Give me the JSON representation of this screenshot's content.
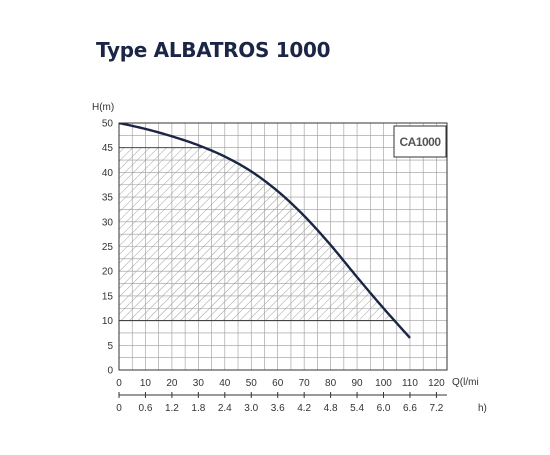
{
  "title": "Type ALBATROS 1000",
  "chart_data": {
    "type": "line",
    "title": "Type ALBATROS 1000",
    "ylabel": "H(m)",
    "xlabel": "Q(l/mi",
    "x2label": "h)",
    "xlim": [
      0,
      124
    ],
    "ylim": [
      0,
      50
    ],
    "x_ticks": [
      0,
      10,
      20,
      30,
      40,
      50,
      60,
      70,
      80,
      90,
      100,
      110,
      120
    ],
    "y_ticks": [
      0,
      5,
      10,
      15,
      20,
      25,
      30,
      35,
      40,
      45,
      50
    ],
    "x2_ticks": [
      "0",
      "0.6",
      "1.2",
      "1.8",
      "2.4",
      "3.0",
      "3.6",
      "4.2",
      "4.8",
      "5.4",
      "6.0",
      "6.6",
      "7.2"
    ],
    "grid": true,
    "legend": "CA1000",
    "legend_position": "top-right",
    "series_color": "#1b2545",
    "hatched_region": {
      "ymin": 10,
      "ymax": 45
    },
    "series": [
      {
        "name": "CA1000",
        "x": [
          0,
          10,
          20,
          30,
          40,
          50,
          60,
          70,
          80,
          90,
          100,
          110
        ],
        "y": [
          50,
          48.8,
          47.3,
          45.5,
          43.2,
          40.2,
          36.2,
          31.2,
          25.3,
          18.8,
          12.5,
          6.5
        ]
      }
    ],
    "dashed_from_x": 109
  }
}
